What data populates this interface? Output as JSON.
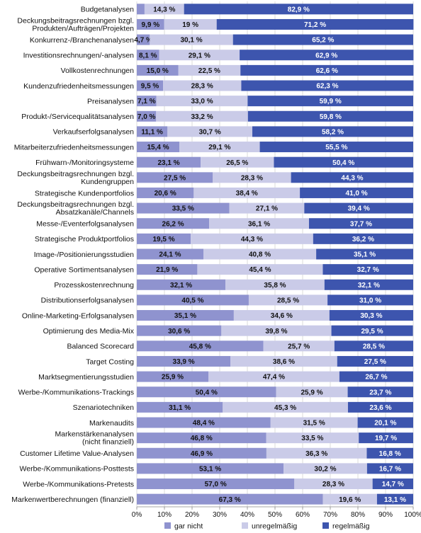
{
  "chart_data": {
    "type": "bar",
    "orientation": "horizontal",
    "stacked": true,
    "xlim": [
      0,
      100
    ],
    "x_ticks": [
      "0%",
      "10%",
      "20%",
      "30%",
      "40%",
      "50%",
      "60%",
      "70%",
      "80%",
      "90%",
      "100%"
    ],
    "grid": true,
    "legend_position": "bottom",
    "categories": [
      [
        "Budgetanalysen"
      ],
      [
        "Deckungsbeitragsrechnungen bzgl.",
        "Produkten/Aufträgen/Projekten"
      ],
      [
        "Konkurrenz-/Branchenanalysen"
      ],
      [
        "Investitionsrechnungen/-analysen"
      ],
      [
        "Vollkostenrechnungen"
      ],
      [
        "Kundenzufriedenheitsmessungen"
      ],
      [
        "Preisanalysen"
      ],
      [
        "Produkt-/Servicequalitätsanalysen"
      ],
      [
        "Verkaufserfolgsanalysen"
      ],
      [
        "Mitarbeiterzufriedenheitsmessungen"
      ],
      [
        "Frühwarn-/Monitoringsysteme"
      ],
      [
        "Deckungsbeitragsrechnungen bzgl.",
        "Kundengruppen"
      ],
      [
        "Strategische Kundenportfolios"
      ],
      [
        "Deckungsbeitragsrechnungen bzgl.",
        "Absatzkanäle/Channels"
      ],
      [
        "Messe-/Eventerfolgsanalysen"
      ],
      [
        "Strategische Produktportfolios"
      ],
      [
        "Image-/Positionierungsstudien"
      ],
      [
        "Operative Sortimentsanalysen"
      ],
      [
        "Prozesskostenrechnung"
      ],
      [
        "Distributionserfolgsanalysen"
      ],
      [
        "Online-Marketing-Erfolgsanalysen"
      ],
      [
        "Optimierung des Media-Mix"
      ],
      [
        "Balanced Scorecard"
      ],
      [
        "Target Costing"
      ],
      [
        "Marktsegmentierungsstudien"
      ],
      [
        "Werbe-/Kommunikations-Trackings"
      ],
      [
        "Szenariotechniken"
      ],
      [
        "Markenaudits"
      ],
      [
        "Markenstärkenanalysen",
        "(nicht finanziell)"
      ],
      [
        "Customer Lifetime Value-Analysen"
      ],
      [
        "Werbe-/Kommunikations-Posttests"
      ],
      [
        "Werbe-/Kommunikations-Pretests"
      ],
      [
        "Markenwertberechnungen (finanziell)"
      ]
    ],
    "series": [
      {
        "name": "gar nicht",
        "color": "#8f93cf",
        "values": [
          2.8,
          9.9,
          4.7,
          8.1,
          15.0,
          9.5,
          7.1,
          7.0,
          11.1,
          15.4,
          23.1,
          27.5,
          20.6,
          33.5,
          26.2,
          19.5,
          24.1,
          21.9,
          32.1,
          40.5,
          35.1,
          30.6,
          45.8,
          33.9,
          25.9,
          50.4,
          31.1,
          48.4,
          46.8,
          46.9,
          53.1,
          57.0,
          67.3
        ],
        "labels": [
          "",
          "9,9 %",
          "4,7 %",
          "8,1 %",
          "15,0 %",
          "9,5 %",
          "7,1 %",
          "7,0 %",
          "11,1 %",
          "15,4 %",
          "23,1 %",
          "27,5 %",
          "20,6 %",
          "33,5 %",
          "26,2 %",
          "19,5 %",
          "24,1 %",
          "21,9 %",
          "32,1 %",
          "40,5 %",
          "35,1 %",
          "30,6 %",
          "45,8 %",
          "33,9 %",
          "25,9 %",
          "50,4 %",
          "31,1 %",
          "48,4 %",
          "46,8 %",
          "46,9 %",
          "53,1 %",
          "57,0 %",
          "67,3 %"
        ]
      },
      {
        "name": "unregelmäßig",
        "color": "#cacbe8",
        "values": [
          14.3,
          19.0,
          30.1,
          29.1,
          22.5,
          28.3,
          33.0,
          33.2,
          30.7,
          29.1,
          26.5,
          28.3,
          38.4,
          27.1,
          36.1,
          44.3,
          40.8,
          45.4,
          35.8,
          28.5,
          34.6,
          39.8,
          25.7,
          38.6,
          47.4,
          25.9,
          45.3,
          31.5,
          33.5,
          36.3,
          30.2,
          28.3,
          19.6
        ],
        "labels": [
          "14,3 %",
          "19 %",
          "30,1 %",
          "29,1 %",
          "22,5 %",
          "28,3 %",
          "33,0 %",
          "33,2 %",
          "30,7 %",
          "29,1 %",
          "26,5 %",
          "28,3 %",
          "38,4 %",
          "27,1 %",
          "36,1 %",
          "44,3 %",
          "40,8 %",
          "45,4 %",
          "35,8 %",
          "28,5 %",
          "34,6 %",
          "39,8 %",
          "25,7 %",
          "38,6 %",
          "47,4 %",
          "25,9 %",
          "45,3 %",
          "31,5 %",
          "33,5 %",
          "36,3 %",
          "30,2 %",
          "28,3 %",
          "19,6 %"
        ]
      },
      {
        "name": "regelmäßig",
        "color": "#3d55ae",
        "values": [
          82.9,
          71.2,
          65.2,
          62.9,
          62.6,
          62.3,
          59.9,
          59.8,
          58.2,
          55.5,
          50.4,
          44.3,
          41.0,
          39.4,
          37.7,
          36.2,
          35.1,
          32.7,
          32.1,
          31.0,
          30.3,
          29.5,
          28.5,
          27.5,
          26.7,
          23.7,
          23.6,
          20.1,
          19.7,
          16.8,
          16.7,
          14.7,
          13.1
        ],
        "labels": [
          "82,9 %",
          "71,2 %",
          "65,2 %",
          "62,9 %",
          "62,6 %",
          "62,3 %",
          "59,9 %",
          "59,8 %",
          "58,2 %",
          "55,5 %",
          "50,4 %",
          "44,3 %",
          "41,0 %",
          "39,4 %",
          "37,7 %",
          "36,2 %",
          "35,1 %",
          "32,7 %",
          "32,1 %",
          "31,0 %",
          "30,3 %",
          "29,5 %",
          "28,5 %",
          "27,5 %",
          "26,7 %",
          "23,7 %",
          "23,6 %",
          "20,1 %",
          "19,7 %",
          "16,8 %",
          "16,7 %",
          "14,7 %",
          "13,1 %"
        ]
      }
    ]
  }
}
